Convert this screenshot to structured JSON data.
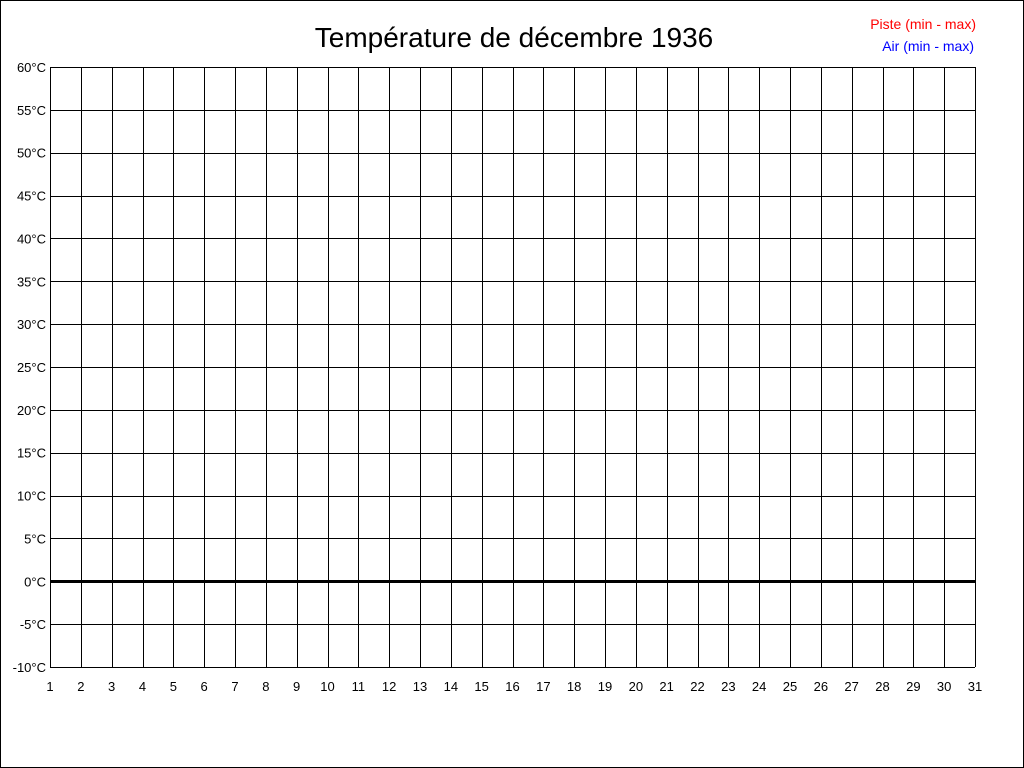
{
  "chart_data": {
    "type": "line",
    "title": "Température de décembre 1936",
    "xlabel": "",
    "ylabel": "",
    "x_ticks": [
      1,
      2,
      3,
      4,
      5,
      6,
      7,
      8,
      9,
      10,
      11,
      12,
      13,
      14,
      15,
      16,
      17,
      18,
      19,
      20,
      21,
      22,
      23,
      24,
      25,
      26,
      27,
      28,
      29,
      30,
      31
    ],
    "xlim": [
      1,
      31
    ],
    "ylim": [
      -10,
      60
    ],
    "y_step": 5,
    "y_unit": "°C",
    "grid": true,
    "zero_line": true,
    "legend_placement": "top-right",
    "series": [
      {
        "name": "Piste (min - max)",
        "color": "#ff0000",
        "values": []
      },
      {
        "name": "Air (min - max)",
        "color": "#0000ff",
        "values": []
      }
    ]
  }
}
